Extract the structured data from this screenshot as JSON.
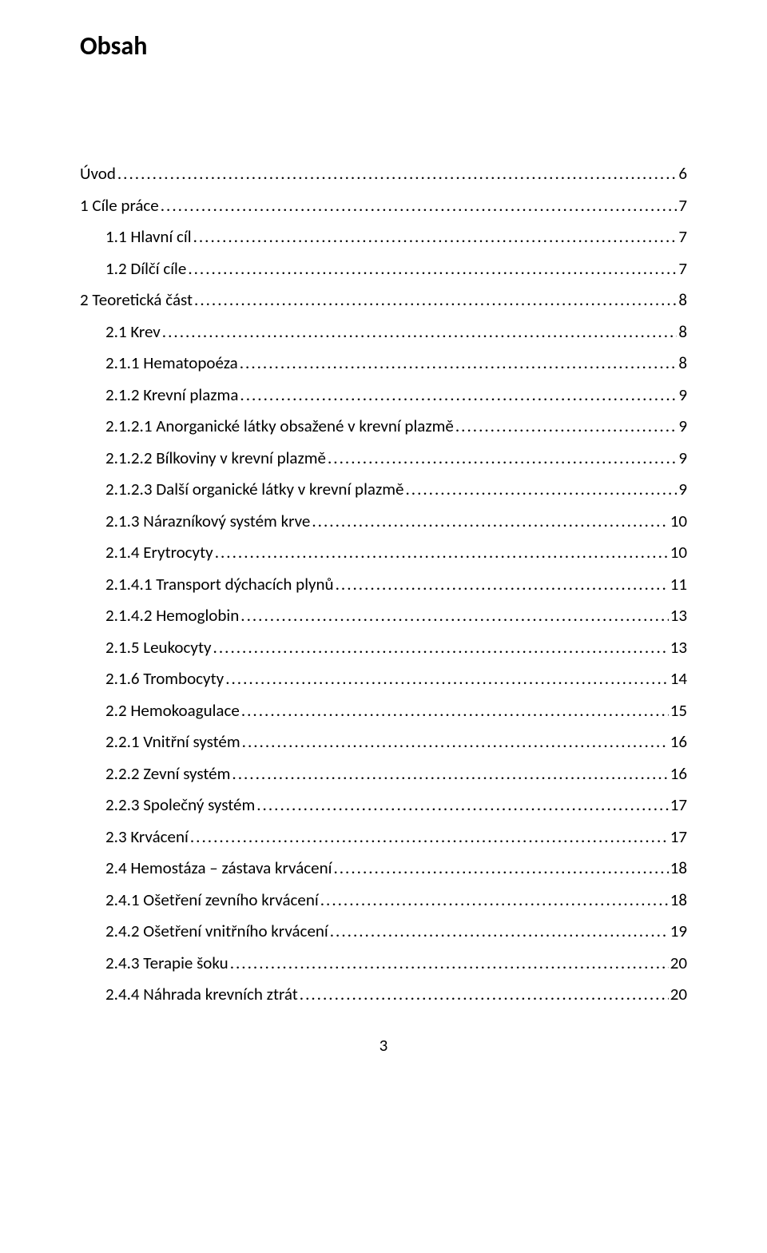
{
  "title": "Obsah",
  "page_number": "3",
  "colors": {
    "text": "#000000",
    "background": "#ffffff"
  },
  "typography": {
    "title_fontsize": 32,
    "body_fontsize": 21,
    "font_family": "Calibri"
  },
  "toc": [
    {
      "label": "Úvod",
      "page": "6",
      "level": 0
    },
    {
      "label": "1 Cíle práce",
      "page": "7",
      "level": 0
    },
    {
      "label": "1.1 Hlavní cíl",
      "page": "7",
      "level": 2
    },
    {
      "label": "1.2 Dílčí cíle",
      "page": "7",
      "level": 2
    },
    {
      "label": "2 Teoretická část",
      "page": "8",
      "level": 0
    },
    {
      "label": "2.1 Krev",
      "page": "8",
      "level": 2
    },
    {
      "label": "2.1.1 Hematopoéza",
      "page": "8",
      "level": 2
    },
    {
      "label": "2.1.2 Krevní plazma",
      "page": "9",
      "level": 2
    },
    {
      "label": "2.1.2.1 Anorganické látky obsažené v krevní plazmě",
      "page": "9",
      "level": 2
    },
    {
      "label": "2.1.2.2 Bílkoviny v krevní plazmě",
      "page": "9",
      "level": 2
    },
    {
      "label": "2.1.2.3 Další organické látky v krevní plazmě",
      "page": "9",
      "level": 2
    },
    {
      "label": "2.1.3 Nárazníkový systém krve",
      "page": "10",
      "level": 2
    },
    {
      "label": "2.1.4 Erytrocyty",
      "page": "10",
      "level": 2
    },
    {
      "label": "2.1.4.1 Transport dýchacích plynů",
      "page": "11",
      "level": 2
    },
    {
      "label": "2.1.4.2 Hemoglobin",
      "page": "13",
      "level": 2
    },
    {
      "label": "2.1.5 Leukocyty",
      "page": "13",
      "level": 2
    },
    {
      "label": "2.1.6 Trombocyty",
      "page": "14",
      "level": 2
    },
    {
      "label": "2.2 Hemokoagulace",
      "page": "15",
      "level": 2
    },
    {
      "label": "2.2.1 Vnitřní systém",
      "page": "16",
      "level": 2
    },
    {
      "label": "2.2.2 Zevní systém",
      "page": "16",
      "level": 2
    },
    {
      "label": "2.2.3 Společný systém",
      "page": "17",
      "level": 2
    },
    {
      "label": "2.3 Krvácení",
      "page": "17",
      "level": 2
    },
    {
      "label": "2.4 Hemostáza – zástava krvácení",
      "page": "18",
      "level": 2
    },
    {
      "label": "2.4.1 Ošetření zevního krvácení",
      "page": "18",
      "level": 2
    },
    {
      "label": "2.4.2 Ošetření vnitřního krvácení",
      "page": "19",
      "level": 2
    },
    {
      "label": "2.4.3 Terapie šoku",
      "page": "20",
      "level": 2
    },
    {
      "label": "2.4.4 Náhrada krevních ztrát",
      "page": "20",
      "level": 2
    }
  ]
}
